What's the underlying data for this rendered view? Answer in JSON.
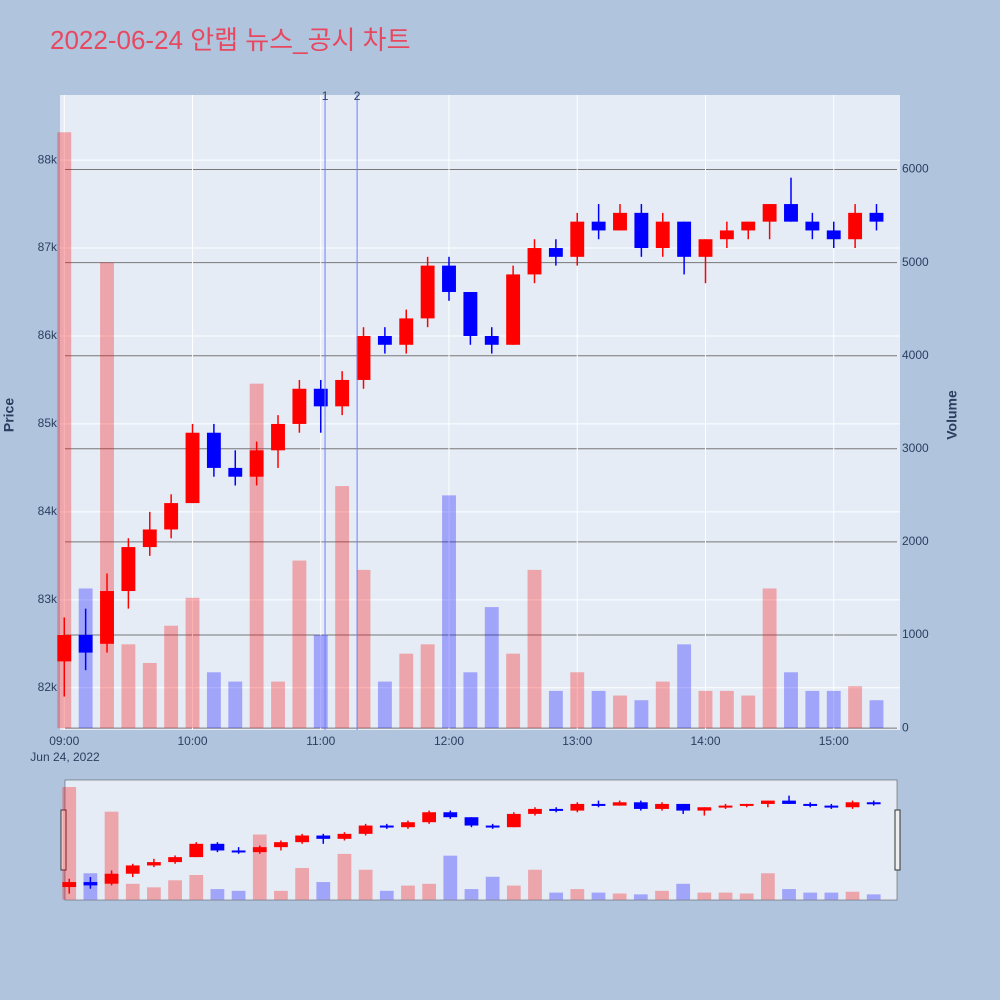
{
  "chart_data": {
    "type": "candlestick",
    "title": "2022-06-24 안랩 뉴스_공시 차트",
    "y_label": "Price",
    "y2_label": "Volume",
    "x_date_label": "Jun 24, 2022",
    "x": [
      "09:00",
      "09:10",
      "09:20",
      "09:30",
      "09:40",
      "09:50",
      "10:00",
      "10:10",
      "10:20",
      "10:30",
      "10:40",
      "10:50",
      "11:00",
      "11:10",
      "11:20",
      "11:30",
      "11:40",
      "11:50",
      "12:00",
      "12:10",
      "12:20",
      "12:30",
      "12:40",
      "12:50",
      "13:00",
      "13:10",
      "13:20",
      "13:30",
      "13:40",
      "13:50",
      "14:00",
      "14:10",
      "14:20",
      "14:30",
      "14:40",
      "14:50",
      "15:00",
      "15:10",
      "15:20"
    ],
    "open": [
      82300,
      82600,
      82500,
      83100,
      83600,
      83800,
      84100,
      84900,
      84500,
      84400,
      84700,
      85000,
      85400,
      85200,
      85500,
      86000,
      85900,
      86200,
      86800,
      86500,
      86000,
      85900,
      86700,
      87000,
      86900,
      87300,
      87200,
      87400,
      87000,
      87300,
      86900,
      87100,
      87200,
      87300,
      87500,
      87300,
      87200,
      87100,
      87400
    ],
    "high": [
      82800,
      82900,
      83300,
      83700,
      84000,
      84200,
      85000,
      85000,
      84700,
      84800,
      85100,
      85500,
      85500,
      85600,
      86100,
      86100,
      86300,
      86900,
      86900,
      86500,
      86100,
      86800,
      87100,
      87100,
      87400,
      87500,
      87500,
      87500,
      87400,
      87300,
      87100,
      87300,
      87300,
      87500,
      87800,
      87400,
      87300,
      87500,
      87500
    ],
    "low": [
      81900,
      82200,
      82400,
      82900,
      83500,
      83700,
      84100,
      84400,
      84300,
      84300,
      84500,
      84900,
      84900,
      85100,
      85400,
      85800,
      85800,
      86100,
      86400,
      85900,
      85800,
      85900,
      86600,
      86800,
      86800,
      87100,
      87200,
      86900,
      86900,
      86700,
      86600,
      87000,
      87100,
      87100,
      87300,
      87100,
      87000,
      87000,
      87200
    ],
    "close": [
      82600,
      82400,
      83100,
      83600,
      83800,
      84100,
      84900,
      84500,
      84400,
      84700,
      85000,
      85400,
      85200,
      85500,
      86000,
      85900,
      86200,
      86800,
      86500,
      86000,
      85900,
      86700,
      87000,
      86900,
      87300,
      87200,
      87400,
      87000,
      87300,
      86900,
      87100,
      87200,
      87300,
      87500,
      87300,
      87200,
      87100,
      87400,
      87300
    ],
    "volume": [
      6400,
      1500,
      5000,
      900,
      700,
      1100,
      1400,
      600,
      500,
      3700,
      500,
      1800,
      1000,
      2600,
      1700,
      500,
      800,
      900,
      2500,
      600,
      1300,
      800,
      1700,
      400,
      600,
      400,
      350,
      300,
      500,
      900,
      400,
      400,
      350,
      1500,
      600,
      400,
      400,
      450,
      300
    ],
    "increasing_color": "#ff0000",
    "decreasing_color": "#0000ff",
    "xlim": [
      "08:58",
      "15:31"
    ],
    "xticks": [
      "09:00",
      "10:00",
      "11:00",
      "12:00",
      "13:00",
      "14:00",
      "15:00"
    ],
    "ylim": [
      81520,
      88740
    ],
    "yticks": [
      {
        "value": 82000,
        "label": "82k"
      },
      {
        "value": 83000,
        "label": "83k"
      },
      {
        "value": 84000,
        "label": "84k"
      },
      {
        "value": 85000,
        "label": "85k"
      },
      {
        "value": 86000,
        "label": "86k"
      },
      {
        "value": 87000,
        "label": "87k"
      },
      {
        "value": 88000,
        "label": "88k"
      }
    ],
    "y2lim": [
      -20,
      6800
    ],
    "y2ticks": [
      0,
      1000,
      2000,
      3000,
      4000,
      5000,
      6000
    ],
    "annotations": [
      {
        "x": "11:02",
        "label": "1"
      },
      {
        "x": "11:17",
        "label": "2"
      }
    ],
    "grid": true,
    "rangeslider": true
  }
}
